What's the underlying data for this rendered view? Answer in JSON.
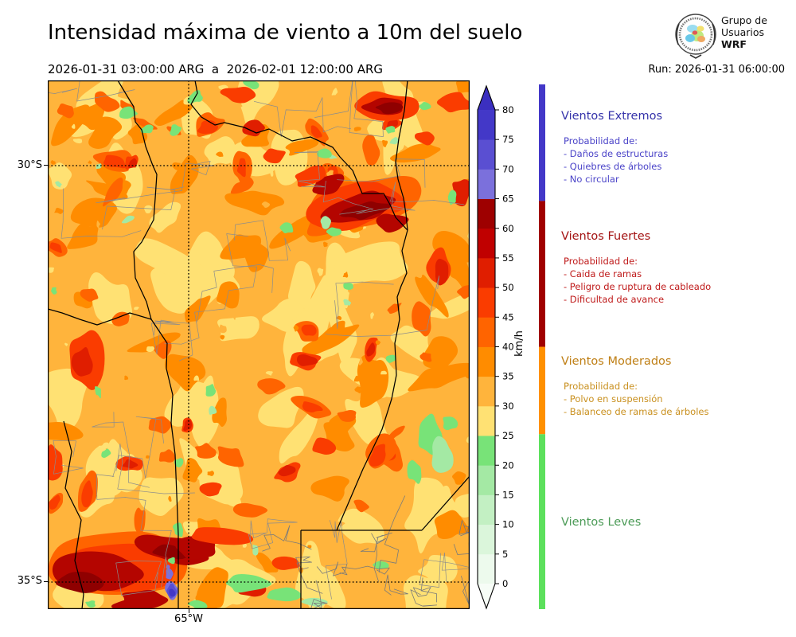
{
  "header": {
    "title": "Intensidad máxima de viento a 10m del suelo",
    "period": "2026-01-31 03:00:00 ARG  a  2026-02-01 12:00:00 ARG",
    "run_label": "Run: 2026-01-31 06:00:00",
    "logo": {
      "line1": "Grupo de",
      "line2": "Usuarios",
      "line3": "WRF"
    }
  },
  "map": {
    "lat_ticks": [
      "30°S",
      "35°S"
    ],
    "lon_ticks": [
      "65°W"
    ]
  },
  "colorbar": {
    "unit": "km/h",
    "ticks": [
      0,
      5,
      10,
      15,
      20,
      25,
      30,
      35,
      40,
      45,
      50,
      55,
      60,
      65,
      70,
      75,
      80
    ],
    "over_color": "#3b2fc0",
    "under_color": "#f7fdf7",
    "segments": [
      {
        "from": 0,
        "to": 5,
        "color": "#edfaed"
      },
      {
        "from": 5,
        "to": 10,
        "color": "#dbf6db"
      },
      {
        "from": 10,
        "to": 15,
        "color": "#c3f0c3"
      },
      {
        "from": 15,
        "to": 20,
        "color": "#a4e9a4"
      },
      {
        "from": 20,
        "to": 25,
        "color": "#78e378"
      },
      {
        "from": 25,
        "to": 30,
        "color": "#ffe173"
      },
      {
        "from": 30,
        "to": 35,
        "color": "#ffb43c"
      },
      {
        "from": 35,
        "to": 40,
        "color": "#ff8c00"
      },
      {
        "from": 40,
        "to": 45,
        "color": "#ff6400"
      },
      {
        "from": 45,
        "to": 50,
        "color": "#fa3c00"
      },
      {
        "from": 50,
        "to": 55,
        "color": "#e01e00"
      },
      {
        "from": 55,
        "to": 60,
        "color": "#c00000"
      },
      {
        "from": 60,
        "to": 65,
        "color": "#9e0000"
      },
      {
        "from": 65,
        "to": 70,
        "color": "#7b70dc"
      },
      {
        "from": 70,
        "to": 75,
        "color": "#5a4fd2"
      },
      {
        "from": 75,
        "to": 80,
        "color": "#4338c8"
      }
    ]
  },
  "side_indicator": [
    {
      "name": "extremos",
      "color": "#4338c8",
      "from": 65,
      "to": 85
    },
    {
      "name": "fuertes",
      "color": "#a00000",
      "from": 40,
      "to": 65
    },
    {
      "name": "moderados",
      "color": "#ff9000",
      "from": 25,
      "to": 40
    },
    {
      "name": "leves",
      "color": "#5ce05c",
      "from": -5,
      "to": 25
    }
  ],
  "legend_sections": [
    {
      "id": "extremos",
      "title": "Vientos Extremos",
      "title_color": "#3533aa",
      "body_color": "#4a43c8",
      "intro": "Probabilidad de:",
      "items": [
        "- Daños de estructuras",
        "- Quiebres de árboles",
        "- No circular"
      ]
    },
    {
      "id": "fuertes",
      "title": "Vientos Fuertes",
      "title_color": "#a31212",
      "body_color": "#bf1a1a",
      "intro": "Probabilidad de:",
      "items": [
        "- Caida de ramas",
        "- Peligro de ruptura de cableado",
        "- Dificultad de avance"
      ]
    },
    {
      "id": "moderados",
      "title": "Vientos Moderados",
      "title_color": "#bf7f15",
      "body_color": "#c9901f",
      "intro": "Probabilidad de:",
      "items": [
        "- Polvo en suspensión",
        "- Balanceo de ramas de árboles"
      ]
    },
    {
      "id": "leves",
      "title": "Vientos Leves",
      "title_color": "#4c9b57",
      "body_color": "#4c9b57",
      "intro": "",
      "items": []
    }
  ],
  "map_palette": {
    "base": "#ffb43c",
    "pale": "#ffe173",
    "deep": "#ff8c00",
    "orange_red": "#ff6400",
    "red": "#fa3c00",
    "crimson": "#e01e00",
    "dark_red": "#b40500",
    "maroon": "#8f0000",
    "green": "#78e378",
    "light_green": "#a4e9a4",
    "purple": "#7b70dc",
    "violet": "#5a4fd2",
    "blue": "#4338c8",
    "province_border": "#000000",
    "dept_border": "#8c8c8c"
  },
  "chart_data": {
    "type": "heatmap",
    "title": "Intensidad máxima de viento a 10m del suelo",
    "period_start": "2026-01-31 03:00:00 ARG",
    "period_end": "2026-02-01 12:00:00 ARG",
    "run": "2026-01-31 06:00:00",
    "unit": "km/h",
    "colorbar_range": [
      0,
      85
    ],
    "colorbar_ticks": [
      0,
      5,
      10,
      15,
      20,
      25,
      30,
      35,
      40,
      45,
      50,
      55,
      60,
      65,
      70,
      75,
      80
    ],
    "lat_ticks": [
      "30°S",
      "35°S"
    ],
    "lon_ticks": [
      "65°W"
    ],
    "categories": [
      {
        "name": "Vientos Leves",
        "range_kmh": [
          0,
          25
        ]
      },
      {
        "name": "Vientos Moderados",
        "range_kmh": [
          25,
          40
        ]
      },
      {
        "name": "Vientos Fuertes",
        "range_kmh": [
          40,
          65
        ]
      },
      {
        "name": "Vientos Extremos",
        "range_kmh": [
          65,
          85
        ]
      }
    ]
  }
}
